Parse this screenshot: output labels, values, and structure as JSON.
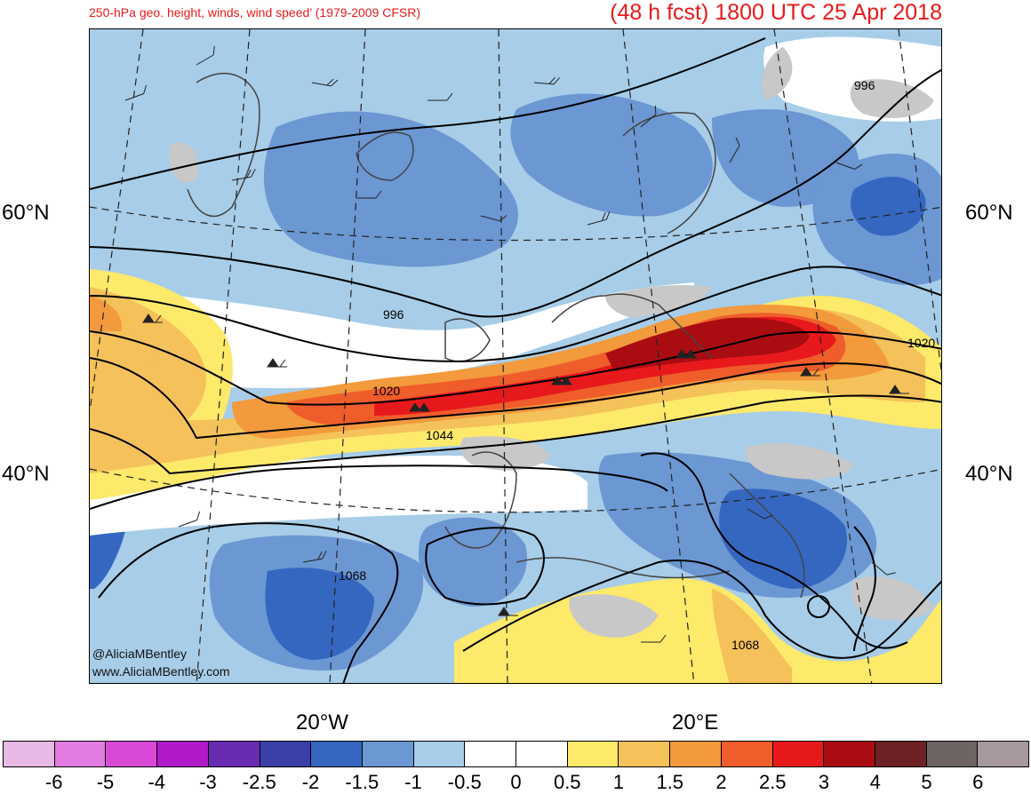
{
  "header": {
    "left_title": "250-hPa geo. height, winds, wind speed’ (1979-2009 CFSR)",
    "right_title": "(48 h fcst) 1800 UTC 25 Apr 2018"
  },
  "map": {
    "latitude_labels": [
      "60°N",
      "40°N"
    ],
    "longitude_labels": [
      "20°W",
      "20°E"
    ],
    "contour_labels": [
      "996",
      "996",
      "1020",
      "1020",
      "1044",
      "1068",
      "1068"
    ],
    "credit_lines": [
      "@AliciaMBentley",
      "www.AliciaMBentley.com"
    ]
  },
  "colorbar": {
    "labels": [
      "-6",
      "-5",
      "-4",
      "-3",
      "-2.5",
      "-2",
      "-1.5",
      "-1",
      "-0.5",
      "0",
      "0.5",
      "1",
      "1.5",
      "2",
      "2.5",
      "3",
      "4",
      "5",
      "6"
    ],
    "colors": [
      "#e9b9e6",
      "#e37ce2",
      "#d84ad6",
      "#b01ac9",
      "#6a2bb3",
      "#3b3fa8",
      "#3567c1",
      "#6b97d3",
      "#a7cde8",
      "#ffffff",
      "#ffffff",
      "#fde96a",
      "#f4c15a",
      "#f29a3c",
      "#ef5d2b",
      "#e8191c",
      "#a90d12",
      "#6e2124",
      "#6e6462",
      "#a7999b"
    ]
  }
}
